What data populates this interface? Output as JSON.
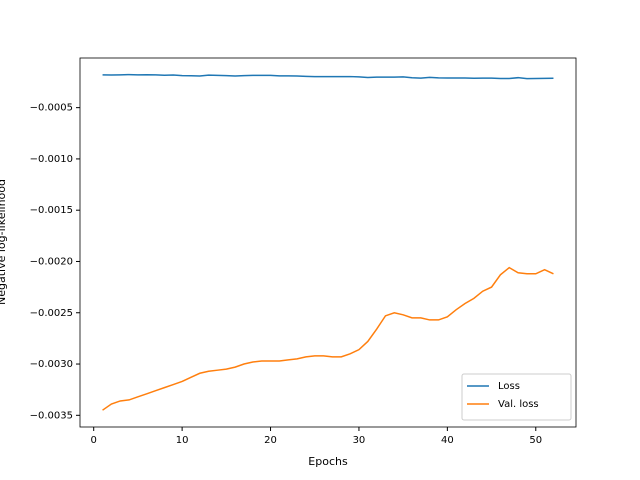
{
  "chart_data": {
    "type": "line",
    "x_label": "Epochs",
    "y_label": "Negative log-likelihood",
    "x": [
      1,
      2,
      3,
      4,
      5,
      6,
      7,
      8,
      9,
      10,
      11,
      12,
      13,
      14,
      15,
      16,
      17,
      18,
      19,
      20,
      21,
      22,
      23,
      24,
      25,
      26,
      27,
      28,
      29,
      30,
      31,
      32,
      33,
      34,
      35,
      36,
      37,
      38,
      39,
      40,
      41,
      42,
      43,
      44,
      45,
      46,
      47,
      48,
      49,
      50,
      51,
      52
    ],
    "series": [
      {
        "name": "Loss",
        "color": "#1f77b4",
        "values": [
          -0.00018,
          -0.000182,
          -0.00018,
          -0.000178,
          -0.00018,
          -0.000179,
          -0.00018,
          -0.000184,
          -0.000182,
          -0.000188,
          -0.000189,
          -0.000192,
          -0.000183,
          -0.000185,
          -0.000188,
          -0.000192,
          -0.000188,
          -0.000185,
          -0.000186,
          -0.000186,
          -0.00019,
          -0.00019,
          -0.000192,
          -0.000195,
          -0.000197,
          -0.000198,
          -0.000198,
          -0.000198,
          -0.000197,
          -0.0002,
          -0.000206,
          -0.000203,
          -0.000203,
          -0.000202,
          -0.0002,
          -0.000209,
          -0.000212,
          -0.000205,
          -0.00021,
          -0.000211,
          -0.000211,
          -0.000211,
          -0.000213,
          -0.000212,
          -0.000212,
          -0.000216,
          -0.000216,
          -0.000208,
          -0.000217,
          -0.000216,
          -0.000215,
          -0.000213
        ]
      },
      {
        "name": "Val. loss",
        "color": "#ff7f0e",
        "values": [
          -0.00345,
          -0.00339,
          -0.00336,
          -0.00335,
          -0.00332,
          -0.00329,
          -0.00326,
          -0.00323,
          -0.0032,
          -0.00317,
          -0.00313,
          -0.00309,
          -0.00307,
          -0.00306,
          -0.00305,
          -0.00303,
          -0.003,
          -0.00298,
          -0.00297,
          -0.00297,
          -0.00297,
          -0.00296,
          -0.00295,
          -0.00293,
          -0.00292,
          -0.00292,
          -0.00293,
          -0.00293,
          -0.0029,
          -0.00286,
          -0.00278,
          -0.00266,
          -0.00253,
          -0.0025,
          -0.00252,
          -0.00255,
          -0.00255,
          -0.00257,
          -0.00257,
          -0.00254,
          -0.00247,
          -0.00241,
          -0.00236,
          -0.00229,
          -0.00225,
          -0.00213,
          -0.00206,
          -0.00211,
          -0.00212,
          -0.00212,
          -0.00208,
          -0.00212
        ]
      }
    ],
    "xlim": [
      -1.55,
      54.55
    ],
    "xticks": [
      0,
      10,
      20,
      30,
      40,
      50
    ],
    "ylim": [
      -0.003614,
      -1.6e-05
    ],
    "yticks": [
      {
        "value": -0.0035,
        "label": "−0.0035"
      },
      {
        "value": -0.003,
        "label": "−0.0030"
      },
      {
        "value": -0.0025,
        "label": "−0.0025"
      },
      {
        "value": -0.002,
        "label": "−0.0020"
      },
      {
        "value": -0.0015,
        "label": "−0.0015"
      },
      {
        "value": -0.001,
        "label": "−0.0010"
      },
      {
        "value": -0.0005,
        "label": "−0.0005"
      }
    ],
    "legend": "lower right"
  }
}
